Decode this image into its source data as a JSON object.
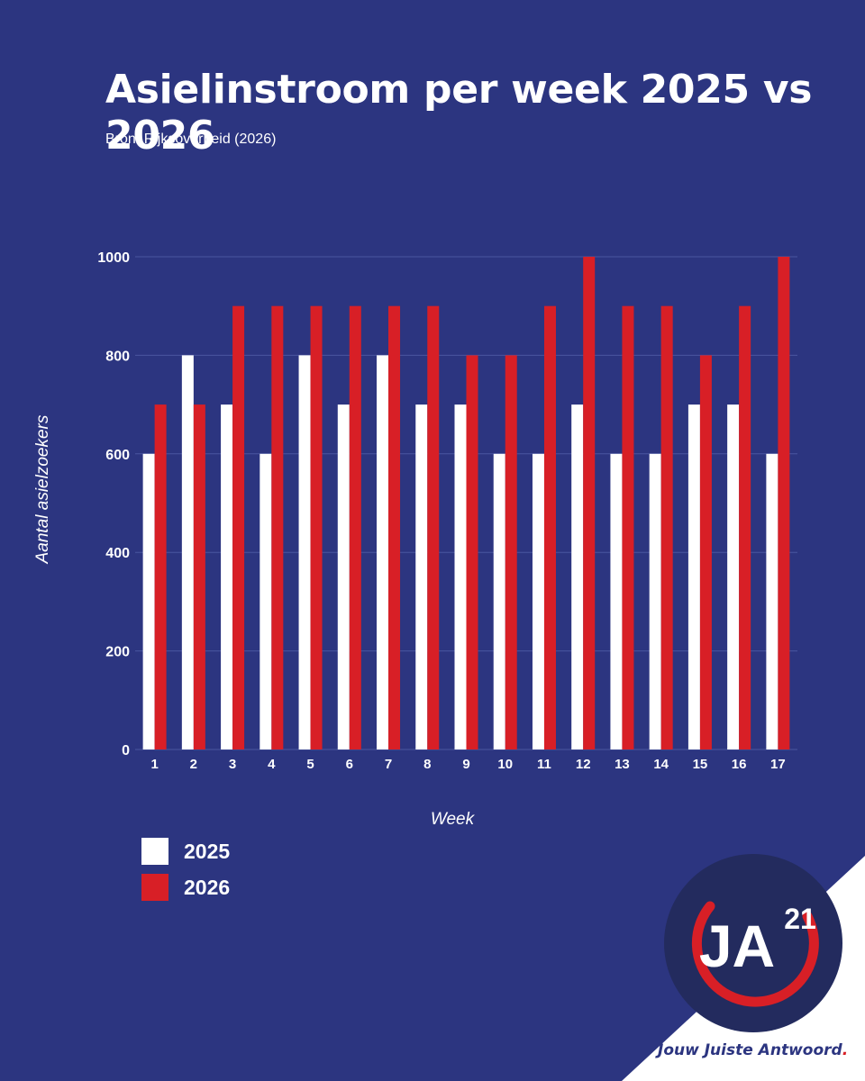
{
  "title": "Asielinstroom per week 2025 vs 2026",
  "source": "Bron: Rijksoverheid (2026)",
  "colors": {
    "background": "#2c3580",
    "series_2025": "#ffffff",
    "series_2026": "#d81f26",
    "grid": "#4a56a0"
  },
  "chart_data": {
    "type": "bar",
    "title": "Asielinstroom per week 2025 vs 2026",
    "xlabel": "Week",
    "ylabel": "Aantal asielzoekers",
    "ylim": [
      0,
      1000
    ],
    "yticks": [
      0,
      200,
      400,
      600,
      800,
      1000
    ],
    "grid": true,
    "legend_position": "bottom-left",
    "categories": [
      "1",
      "2",
      "3",
      "4",
      "5",
      "6",
      "7",
      "8",
      "9",
      "10",
      "11",
      "12",
      "13",
      "14",
      "15",
      "16",
      "17"
    ],
    "series": [
      {
        "name": "2025",
        "color": "#ffffff",
        "values": [
          600,
          800,
          700,
          600,
          800,
          700,
          800,
          700,
          700,
          600,
          600,
          700,
          600,
          600,
          700,
          700,
          600
        ]
      },
      {
        "name": "2026",
        "color": "#d81f26",
        "values": [
          700,
          700,
          900,
          900,
          900,
          900,
          900,
          900,
          800,
          800,
          900,
          1000,
          900,
          900,
          800,
          900,
          1000
        ]
      }
    ]
  },
  "logo": {
    "text": "JA",
    "superscript": "21"
  },
  "slogan": {
    "text": "Jouw Juiste Antwoord",
    "dot": "."
  }
}
